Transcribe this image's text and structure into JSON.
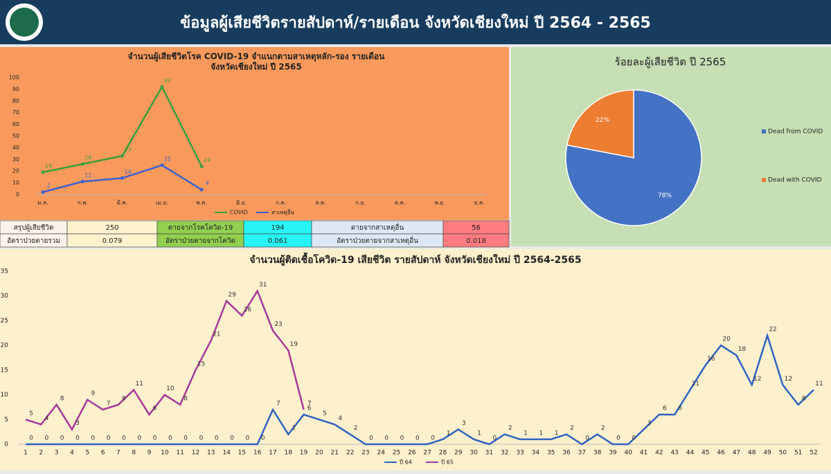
{
  "header": {
    "title": "ข้อมูลผู้เสียชีวิตรายสัปดาห์/รายเดือน จังหวัดเชียงใหม่ ปี 2564 - 2565"
  },
  "chart_data": [
    {
      "type": "line",
      "title": [
        "จำนวนผู้เสียชีวิตโรค COVID-19 จำแนกตามสาเหตุหลัก-รอง รายเดือน",
        "จังหวัดเชียงใหม่ ปี 2565"
      ],
      "categories": [
        "ม.ค.",
        "ก.พ.",
        "มี.ค.",
        "เม.ย.",
        "พ.ค.",
        "มิ.ย.",
        "ก.ค.",
        "ส.ค.",
        "ก.ย.",
        "ต.ค.",
        "พ.ย.",
        "ธ.ค."
      ],
      "series": [
        {
          "name": "COVID",
          "color": "#3a9e3a",
          "values": [
            19,
            26,
            33,
            92,
            24,
            null,
            null,
            null,
            null,
            null,
            null,
            null
          ]
        },
        {
          "name": "สาเหตุอื่น",
          "color": "#3f5fcf",
          "values": [
            2,
            11,
            14,
            25,
            4,
            null,
            null,
            null,
            null,
            null,
            null,
            null
          ]
        }
      ],
      "ylim": [
        0,
        100
      ],
      "yticks": [
        0,
        10,
        20,
        30,
        40,
        50,
        60,
        70,
        80,
        90,
        100
      ],
      "legend": "bottom"
    },
    {
      "type": "pie",
      "title": "ร้อยละผู้เสียชีวิต ปี 2565",
      "categories": [
        "Dead from COVID",
        "Dead with COVID"
      ],
      "values": [
        78,
        22
      ],
      "value_labels": [
        "78%",
        "22%"
      ],
      "colors": [
        "#4472c4",
        "#ed7d31"
      ],
      "legend": "right"
    },
    {
      "type": "line",
      "title": "จำนวนผู้ติดเชื้อโควิด-19 เสียชีวิต รายสัปดาห์ จังหวัดเชียงใหม่ ปี 2564-2565",
      "categories": [
        "1",
        "2",
        "3",
        "4",
        "5",
        "6",
        "7",
        "8",
        "9",
        "10",
        "11",
        "12",
        "13",
        "14",
        "15",
        "16",
        "17",
        "18",
        "19",
        "20",
        "21",
        "22",
        "23",
        "24",
        "25",
        "26",
        "27",
        "28",
        "29",
        "30",
        "31",
        "32",
        "33",
        "34",
        "35",
        "36",
        "37",
        "38",
        "39",
        "40",
        "41",
        "42",
        "43",
        "44",
        "45",
        "46",
        "47",
        "48",
        "49",
        "50",
        "51",
        "52"
      ],
      "series": [
        {
          "name": "ปี 64",
          "color": "#2f62c4",
          "values": [
            0,
            0,
            0,
            0,
            0,
            0,
            0,
            0,
            0,
            0,
            0,
            0,
            0,
            0,
            0,
            0,
            7,
            2,
            6,
            5,
            4,
            2,
            0,
            0,
            0,
            0,
            0,
            1,
            3,
            1,
            0,
            2,
            1,
            1,
            1,
            2,
            0,
            2,
            0,
            0,
            3,
            6,
            6,
            11,
            16,
            20,
            18,
            12,
            22,
            12,
            8,
            11
          ]
        },
        {
          "name": "ปี 65",
          "color": "#a6389a",
          "values": [
            5,
            4,
            8,
            3,
            9,
            7,
            8,
            11,
            6,
            10,
            8,
            15,
            21,
            29,
            26,
            31,
            23,
            19,
            7,
            null,
            null,
            null,
            null,
            null,
            null,
            null,
            null,
            null,
            null,
            null,
            null,
            null,
            null,
            null,
            null,
            null,
            null,
            null,
            null,
            null,
            null,
            null,
            null,
            null,
            null,
            null,
            null,
            null,
            null,
            null,
            null,
            null
          ]
        }
      ],
      "ylim": [
        0,
        35
      ],
      "yticks": [
        0,
        5,
        10,
        15,
        20,
        25,
        30,
        35
      ],
      "legend": "bottom"
    }
  ],
  "table": {
    "rows": [
      [
        "สรุปผู้เสียชีวิต",
        250,
        "ตายจากโรคโควิด-19",
        194,
        "ตายจากสาเหตุอื่น",
        56
      ],
      [
        "อัตราป่วยตายรวม",
        0.079,
        "อัตราป่วยตายจากโควิด",
        0.061,
        "อัตราป่วยตายจากสาเหตุอื่น",
        0.018
      ]
    ]
  }
}
